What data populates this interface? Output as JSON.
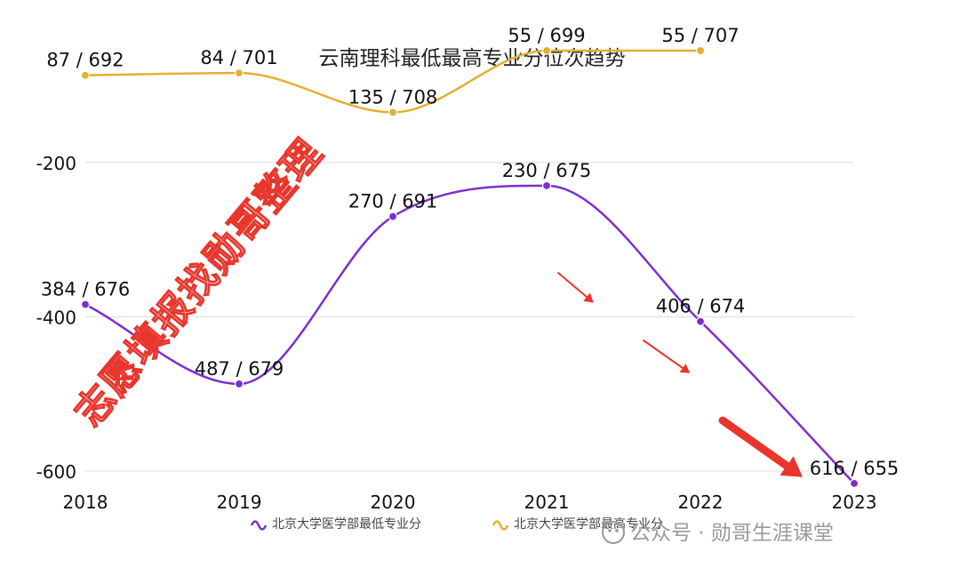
{
  "chart_data": {
    "type": "line",
    "title": "云南理科最低最高专业分位次趋势",
    "x": [
      "2018",
      "2019",
      "2020",
      "2021",
      "2022",
      "2023"
    ],
    "ylim": [
      -600,
      -100
    ],
    "yticks": [
      -200,
      -400,
      -600
    ],
    "grid": true,
    "legend_position": "bottom-center",
    "series": [
      {
        "name": "北京大学医学部最低专业分",
        "color": "#7b2fd0",
        "values": [
          -384,
          -487,
          -270,
          -230,
          -406,
          -616
        ],
        "labels": [
          "384 / 676",
          "487 / 679",
          "270 / 691",
          "230 / 675",
          "406 / 674",
          "616 / 655"
        ]
      },
      {
        "name": "北京大学医学部最高专业分",
        "color": "#e3b02e",
        "values": [
          -87,
          -84,
          -135,
          -55,
          -55,
          null
        ],
        "labels": [
          "87 / 692",
          "84 / 701",
          "135 / 708",
          "55 / 699",
          "55 / 707",
          null
        ]
      }
    ]
  },
  "watermark": {
    "text": "志愿填报找勋哥整理",
    "color": "#e8362c"
  },
  "footer": {
    "brand": "公众号 · 勋哥生涯课堂"
  },
  "annotation_color": "#e8362c"
}
